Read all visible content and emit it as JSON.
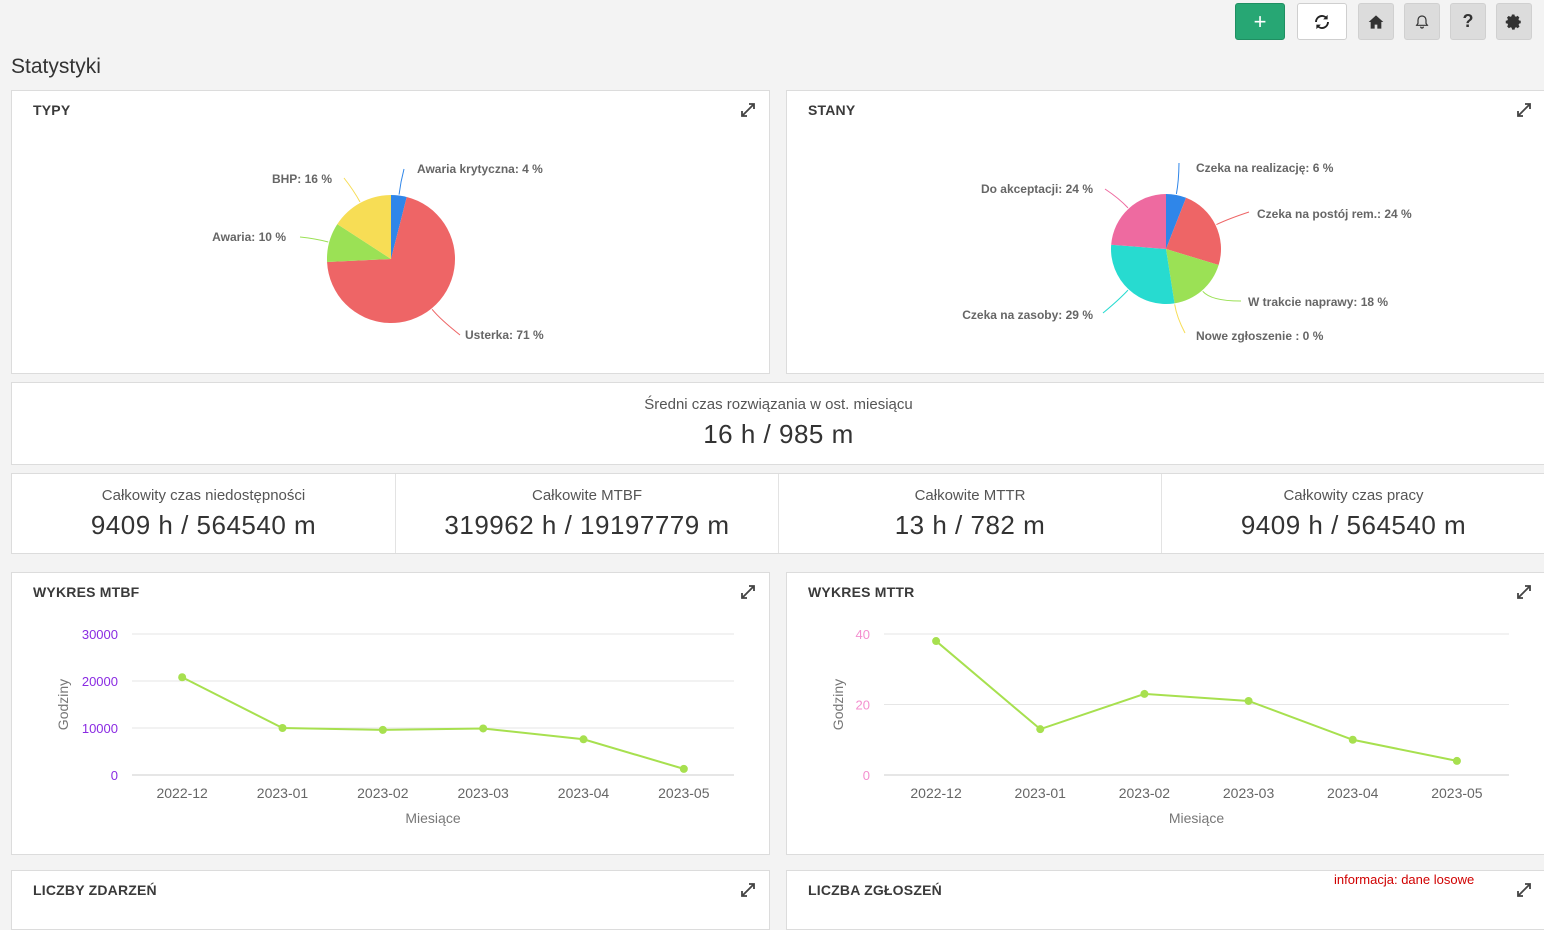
{
  "toolbar": {
    "add_label": "+",
    "help_label": "?",
    "accent": "#27a774"
  },
  "page": {
    "title": "Statystyki"
  },
  "panels": {
    "typy": {
      "title": "TYPY"
    },
    "stany": {
      "title": "STANY"
    },
    "mtbf": {
      "title": "WYKRES MTBF"
    },
    "mttr": {
      "title": "WYKRES MTTR"
    },
    "liczby_zdarzen": {
      "title": "LICZBY ZDARZEŃ"
    },
    "liczba_zgloszen": {
      "title": "LICZBA ZGŁOSZEŃ"
    }
  },
  "avg_resolution": {
    "label": "Średni czas rozwiązania w ost. miesiącu",
    "value": "16 h / 985 m"
  },
  "kpis": [
    {
      "label": "Całkowity czas niedostępności",
      "value": "9409 h / 564540 m"
    },
    {
      "label": "Całkowite MTBF",
      "value": "319962 h / 19197779 m"
    },
    {
      "label": "Całkowite MTTR",
      "value": "13 h / 782 m"
    },
    {
      "label": "Całkowity czas pracy",
      "value": "9409 h / 564540 m"
    }
  ],
  "notice": "informacja: dane losowe",
  "chart_data": [
    {
      "type": "pie",
      "labels": [
        "Awaria krytyczna: 4 %",
        "Usterka: 71 %",
        "Awaria: 10 %",
        "BHP: 16 %"
      ],
      "values": [
        4,
        71,
        10,
        16
      ],
      "colors": [
        "#2f86e9",
        "#ee6566",
        "#9be155",
        "#f7dd55"
      ]
    },
    {
      "type": "pie",
      "labels": [
        "Czeka na realizację: 6 %",
        "Czeka na postój rem.: 24 %",
        "W trakcie naprawy: 18 %",
        "Nowe zgłoszenie : 0 %",
        "Czeka na zasoby: 29 %",
        "Do akceptacji: 24 %"
      ],
      "values": [
        6,
        24,
        18,
        0,
        29,
        24
      ],
      "colors": [
        "#2f86e9",
        "#ee6566",
        "#9be155",
        "#f7dd55",
        "#27dbd0",
        "#ee6aa0"
      ]
    },
    {
      "type": "line",
      "categories": [
        "2022-12",
        "2023-01",
        "2023-02",
        "2023-03",
        "2023-04",
        "2023-05"
      ],
      "series": [
        {
          "values": [
            20800,
            10000,
            9600,
            9900,
            7600,
            1300
          ]
        }
      ],
      "xlabel": "Miesiące",
      "ylabel": "Godziny",
      "ylim": [
        0,
        30000
      ],
      "yticks": [
        "0",
        "10000",
        "20000",
        "30000"
      ],
      "line_color": "#a7e04f",
      "ytick_color": "#8a2be2",
      "grid": true
    },
    {
      "type": "line",
      "categories": [
        "2022-12",
        "2023-01",
        "2023-02",
        "2023-03",
        "2023-04",
        "2023-05"
      ],
      "series": [
        {
          "values": [
            38,
            13,
            23,
            21,
            10,
            4
          ]
        }
      ],
      "xlabel": "Miesiące",
      "ylabel": "Godziny",
      "ylim": [
        0,
        40
      ],
      "yticks": [
        "0",
        "20",
        "40"
      ],
      "line_color": "#a7e04f",
      "ytick_color": "#f48fcf",
      "grid": true
    }
  ]
}
